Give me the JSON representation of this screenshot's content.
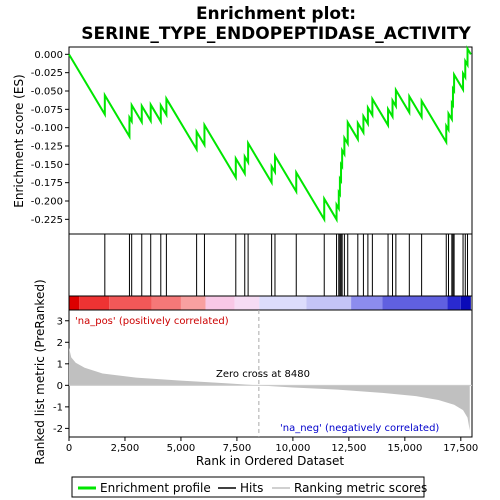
{
  "chart_data": {
    "type": "line",
    "title_line1": "Enrichment plot:",
    "title_line2": "SERINE_TYPE_ENDOPEPTIDASE_ACTIVITY",
    "es_ylabel": "Enrichment score (ES)",
    "rank_ylabel": "Ranked list metric (PreRanked)",
    "xlabel": "Rank in Ordered Dataset",
    "xlim": [
      0,
      18000
    ],
    "es_ylim": [
      -0.245,
      0.01
    ],
    "metric_ylim": [
      -2.4,
      3.5
    ],
    "x_ticks": [
      0,
      2500,
      5000,
      7500,
      10000,
      12500,
      15000,
      17500
    ],
    "x_tick_labels": [
      "0",
      "2,500",
      "5,000",
      "7,500",
      "10,000",
      "12,500",
      "15,000",
      "17,500"
    ],
    "es_ticks": [
      0.0,
      -0.025,
      -0.05,
      -0.075,
      -0.1,
      -0.125,
      -0.15,
      -0.175,
      -0.2,
      -0.225
    ],
    "es_tick_labels": [
      "0.000",
      "-0.025",
      "-0.050",
      "-0.075",
      "-0.100",
      "-0.125",
      "-0.150",
      "-0.175",
      "-0.200",
      "-0.225"
    ],
    "metric_ticks": [
      3,
      2,
      1,
      0,
      -1,
      -2
    ],
    "metric_tick_labels": [
      "3",
      "2",
      "1",
      "0",
      "-1",
      "-2"
    ],
    "hits": [
      1600,
      2700,
      2800,
      3250,
      3650,
      4100,
      4350,
      5700,
      6050,
      7450,
      7850,
      8000,
      9050,
      9200,
      10150,
      11400,
      11950,
      12050,
      12100,
      12150,
      12200,
      12300,
      12450,
      12900,
      13150,
      13350,
      13550,
      14250,
      14450,
      14600,
      15200,
      15750,
      16850,
      16950,
      17100,
      17150,
      17200,
      17600,
      17700,
      17800
    ],
    "es_hit_drop": -0.0058,
    "es_jumps": [
      0.026,
      0.026,
      0.022,
      0.022,
      0.022,
      0.022,
      0.022,
      0.024,
      0.027,
      0.026,
      0.023,
      0.026,
      0.022,
      0.022,
      0.026,
      0.028,
      0.02,
      0.022,
      0.021,
      0.022,
      0.022,
      0.022,
      0.029,
      0.022,
      0.022,
      0.022,
      0.022,
      0.022,
      0.022,
      0.022,
      0.022,
      0.022,
      0.022,
      0.022,
      0.022,
      0.022,
      0.022,
      0.022,
      0.022,
      0.022
    ],
    "metric_curve": [
      [
        0,
        1.75
      ],
      [
        100,
        1.3
      ],
      [
        300,
        1.05
      ],
      [
        700,
        0.82
      ],
      [
        1500,
        0.55
      ],
      [
        3000,
        0.36
      ],
      [
        5000,
        0.22
      ],
      [
        7000,
        0.1
      ],
      [
        8480,
        0.0
      ],
      [
        10000,
        -0.1
      ],
      [
        12000,
        -0.2
      ],
      [
        14000,
        -0.35
      ],
      [
        15500,
        -0.5
      ],
      [
        16500,
        -0.68
      ],
      [
        17200,
        -0.9
      ],
      [
        17600,
        -1.15
      ],
      [
        17800,
        -1.5
      ],
      [
        17900,
        -2.1
      ]
    ],
    "zero_cross_label": "Zero cross at 8480",
    "zero_cross_x": 8480,
    "pos_label": "'na_pos' (positively correlated)",
    "neg_label": "'na_neg' (negatively correlated)",
    "colors": {
      "es_line": "#00e600",
      "hit_line": "#000000",
      "metric_fill": "#c0c0c0",
      "pos_text": "#cc0000",
      "neg_text": "#0000cc",
      "zero_line": "#aaaaaa"
    },
    "heat_segments": [
      {
        "from": 0,
        "to": 450,
        "color": "#dd0000"
      },
      {
        "from": 450,
        "to": 1800,
        "color": "#ee3333"
      },
      {
        "from": 1800,
        "to": 3700,
        "color": "#f25858"
      },
      {
        "from": 3700,
        "to": 5000,
        "color": "#f57878"
      },
      {
        "from": 5000,
        "to": 6100,
        "color": "#f8a0a0"
      },
      {
        "from": 6100,
        "to": 7400,
        "color": "#f8c8e6"
      },
      {
        "from": 7400,
        "to": 8500,
        "color": "#f6dcf4"
      },
      {
        "from": 8500,
        "to": 10600,
        "color": "#dcdcfc"
      },
      {
        "from": 10600,
        "to": 12600,
        "color": "#c4c4f6"
      },
      {
        "from": 12600,
        "to": 14000,
        "color": "#8c8cee"
      },
      {
        "from": 14000,
        "to": 16900,
        "color": "#6060e0"
      },
      {
        "from": 16900,
        "to": 17500,
        "color": "#2a2ad0"
      },
      {
        "from": 17500,
        "to": 17950,
        "color": "#0a0ab8"
      }
    ]
  },
  "legend": {
    "items": [
      {
        "label": "Enrichment profile",
        "color": "#00e600"
      },
      {
        "label": "Hits",
        "color": "#000000"
      },
      {
        "label": "Ranking metric scores",
        "color": "#c0c0c0"
      }
    ]
  }
}
